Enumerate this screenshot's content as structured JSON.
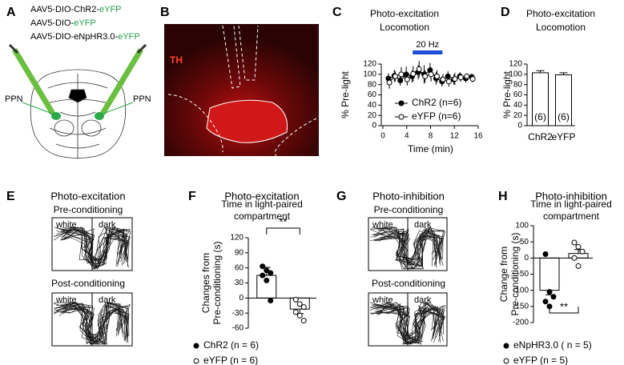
{
  "panel_labels": [
    "A",
    "B",
    "C",
    "D",
    "E",
    "F",
    "G",
    "H"
  ],
  "panel_a": {
    "constructs": [
      [
        {
          "text": "AAV5-DIO-ChR2-"
        },
        {
          "text": "eYFP",
          "color": "#22a04b"
        }
      ],
      [
        {
          "text": "AAV5-DIO-"
        },
        {
          "text": "eYFP",
          "color": "#22a04b"
        }
      ],
      [
        {
          "text": "AAV5-DIO-eNpHR3.0-"
        },
        {
          "text": "eYFP",
          "color": "#22a04b"
        }
      ]
    ],
    "target_labels": [
      "PPN",
      "PPN"
    ]
  },
  "panel_b": {
    "stain_label": "TH"
  },
  "panel_e": {
    "title": "Photo-excitation",
    "sessions": [
      {
        "title": "Pre-conditioning",
        "zones": [
          "white",
          "dark"
        ]
      },
      {
        "title": "Post-conditioning",
        "zones": [
          "white",
          "dark"
        ]
      }
    ]
  },
  "panel_g": {
    "title": "Photo-inhibition",
    "sessions": [
      {
        "title": "Pre-conditioning",
        "zones": [
          "white",
          "dark"
        ]
      },
      {
        "title": "Post-conditioning",
        "zones": [
          "white",
          "dark"
        ]
      }
    ]
  },
  "chart_data": [
    {
      "type": "line",
      "title": [
        "Photo-excitation",
        "Locomotion"
      ],
      "x_label": "Time (min)",
      "y_label": "% Pre-light",
      "annotation": "20 Hz",
      "annotation_range": [
        5,
        10
      ],
      "annotation_color": "#1f4fd8",
      "x": [
        1,
        2,
        3,
        4,
        5,
        6,
        7,
        8,
        9,
        10,
        11,
        12,
        13,
        14,
        15
      ],
      "series": [
        {
          "name": "ChR2 (n=6)",
          "marker": "filled",
          "color": "#000000",
          "values": [
            92,
            97,
            88,
            100,
            96,
            104,
            100,
            108,
            92,
            86,
            96,
            90,
            96,
            92,
            95
          ],
          "errors": [
            10,
            12,
            10,
            15,
            12,
            14,
            18,
            14,
            12,
            10,
            10,
            10,
            8,
            8,
            6
          ]
        },
        {
          "name": "eYFP (n=6)",
          "marker": "open",
          "color": "#000000",
          "values": [
            84,
            96,
            100,
            90,
            101,
            110,
            96,
            100,
            96,
            90,
            86,
            91,
            94,
            96,
            91
          ],
          "errors": [
            12,
            10,
            14,
            12,
            15,
            16,
            12,
            14,
            12,
            10,
            10,
            12,
            8,
            6,
            6
          ]
        }
      ],
      "xlim": [
        0,
        16
      ],
      "xticks": [
        0,
        4,
        8,
        12,
        16
      ],
      "ylim": [
        0,
        120
      ],
      "yticks": [
        0,
        20,
        40,
        60,
        80,
        100,
        120
      ]
    },
    {
      "type": "bar",
      "title": [
        "Photo-excitation",
        "Locomotion"
      ],
      "y_label": "% Pre-light",
      "categories": [
        "ChR2",
        "eYFP"
      ],
      "values": [
        103,
        99
      ],
      "errors": [
        4,
        4
      ],
      "n_labels": [
        "(6)",
        "(6)"
      ],
      "color": "#ffffff",
      "ylim": [
        0,
        120
      ],
      "yticks": [
        0,
        20,
        40,
        60,
        80,
        100,
        120
      ]
    },
    {
      "type": "bar_points",
      "title": "Photo-excitation",
      "subtitle": [
        "Time in light-paired",
        "compartment"
      ],
      "y_label": [
        "Changes from",
        "Pre-conditioning (s)"
      ],
      "series": [
        {
          "name": "ChR2 (n = 6)",
          "marker": "filled",
          "value": 45,
          "error": 16,
          "points": [
            63,
            55,
            50,
            45,
            35,
            -5
          ]
        },
        {
          "name": "eYFP (n = 6)",
          "marker": "open",
          "value": -22,
          "error": 9,
          "points": [
            -3,
            -12,
            -18,
            -28,
            -35,
            -45
          ]
        }
      ],
      "significance": "**",
      "ylim": [
        -60,
        120
      ],
      "yticks": [
        -60,
        -30,
        0,
        30,
        60,
        90,
        120
      ]
    },
    {
      "type": "bar_points",
      "title": "Photo-inhibition",
      "subtitle": [
        "Time in light-paired",
        "compartment"
      ],
      "y_label": [
        "Change from",
        "Pre-conditioning (s)"
      ],
      "series": [
        {
          "name": "eNpHR3.0 ( n = 5)",
          "marker": "filled",
          "value": -100,
          "error": 14,
          "points": [
            12,
            -105,
            -120,
            -135,
            -150
          ]
        },
        {
          "name": "eYFP (n = 5)",
          "marker": "open",
          "value": 14,
          "error": 12,
          "points": [
            48,
            35,
            20,
            0,
            -25
          ]
        }
      ],
      "significance": "**",
      "ylim": [
        -200,
        100
      ],
      "yticks": [
        -200,
        -150,
        -100,
        -50,
        0,
        50,
        100
      ]
    }
  ]
}
